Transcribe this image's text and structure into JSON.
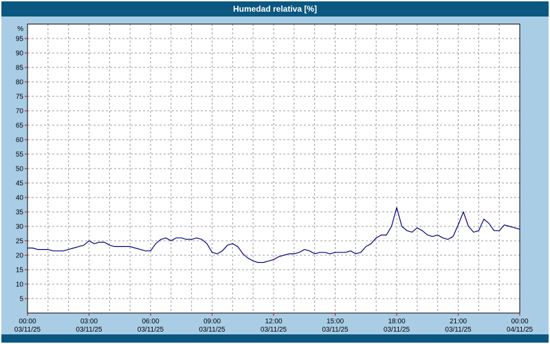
{
  "header": {
    "title": "Humedad relativa [%]"
  },
  "chart_data": {
    "type": "line",
    "title": "Humedad relativa [%]",
    "xlabel": "",
    "ylabel": "%",
    "ylim": [
      0,
      100
    ],
    "yticks": [
      5,
      10,
      15,
      20,
      25,
      30,
      35,
      40,
      45,
      50,
      55,
      60,
      65,
      70,
      75,
      80,
      85,
      90,
      95
    ],
    "grid": true,
    "grid_style": "dashed",
    "legend": "none",
    "x_range_hours": [
      0,
      24
    ],
    "xticks": [
      {
        "hour": 0,
        "time": "00:00",
        "date": "03/11/25"
      },
      {
        "hour": 3,
        "time": "03:00",
        "date": "03/11/25"
      },
      {
        "hour": 6,
        "time": "06:00",
        "date": "03/11/25"
      },
      {
        "hour": 9,
        "time": "09:00",
        "date": "03/11/25"
      },
      {
        "hour": 12,
        "time": "12:00",
        "date": "03/11/25"
      },
      {
        "hour": 15,
        "time": "15:00",
        "date": "03/11/25"
      },
      {
        "hour": 18,
        "time": "18:00",
        "date": "03/11/25"
      },
      {
        "hour": 21,
        "time": "21:00",
        "date": "03/11/25"
      },
      {
        "hour": 24,
        "time": "00:00",
        "date": "04/11/25"
      }
    ],
    "series": [
      {
        "name": "Humedad relativa",
        "color": "#00007f",
        "x_start_hour": 0,
        "x_step_hours": 0.25,
        "values": [
          22.5,
          22.5,
          22,
          22,
          22,
          21.5,
          21.5,
          21.5,
          22,
          22.5,
          23,
          23.5,
          25,
          24,
          24.5,
          24.5,
          23.5,
          23,
          23,
          23,
          23,
          22.5,
          22,
          21.5,
          21.5,
          24,
          25.5,
          26,
          25,
          26,
          26,
          25.5,
          25.5,
          26,
          25.5,
          24,
          21,
          20.5,
          21.5,
          23.5,
          24,
          23,
          20.5,
          19,
          18,
          17.5,
          17.5,
          18,
          18.5,
          19.5,
          20,
          20.5,
          20.5,
          21,
          22,
          21.5,
          20.5,
          21,
          21,
          20.5,
          21,
          21,
          21,
          21.5,
          20.5,
          21,
          23,
          24,
          26,
          27,
          27,
          30,
          36.5,
          30,
          28.5,
          28,
          29.5,
          28.5,
          27,
          26.5,
          27,
          26,
          25.5,
          26.5,
          30.5,
          35,
          30,
          28,
          28.5,
          32.5,
          31,
          28.5,
          28.5,
          30.5,
          30,
          29.5,
          29
        ]
      }
    ],
    "colors": {
      "background": "#aacde6",
      "bar": "#0a5780",
      "plot_bg": "#ffffff",
      "grid": "#999999",
      "tick": "#cc0000",
      "axis": "#000000",
      "text": "#000000"
    }
  }
}
